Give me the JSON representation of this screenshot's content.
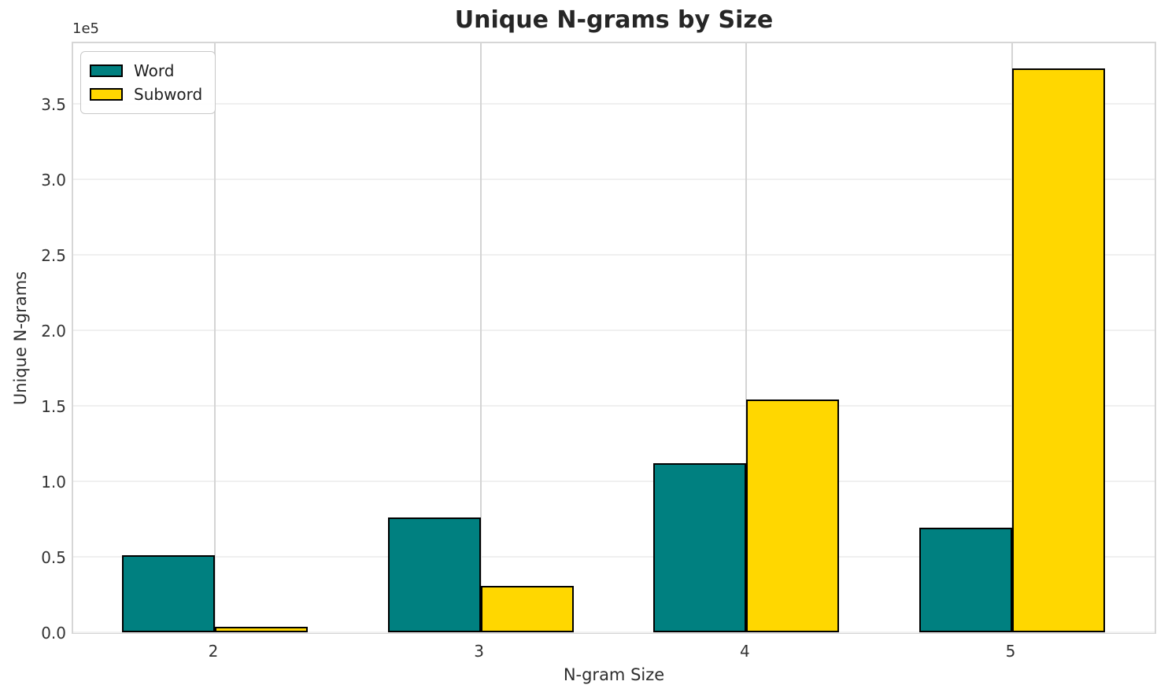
{
  "chart_data": {
    "type": "bar",
    "title": "Unique N-grams by Size",
    "xlabel": "N-gram Size",
    "ylabel": "Unique N-grams",
    "y_offset_label": "1e5",
    "categories": [
      "2",
      "3",
      "4",
      "5"
    ],
    "series": [
      {
        "name": "Word",
        "color": "#008080",
        "values": [
          51000,
          76000,
          112000,
          69000
        ]
      },
      {
        "name": "Subword",
        "color": "#FFD700",
        "values": [
          3500,
          30500,
          154000,
          373500
        ]
      }
    ],
    "bar_edge_color": "#000000",
    "ylim": [
      0,
      392000
    ],
    "ytick_step": 50000,
    "yticks": [
      "0.0",
      "0.5",
      "1.0",
      "1.5",
      "2.0",
      "2.5",
      "3.0",
      "3.5"
    ],
    "grid": true,
    "legend_position": "upper-left"
  }
}
